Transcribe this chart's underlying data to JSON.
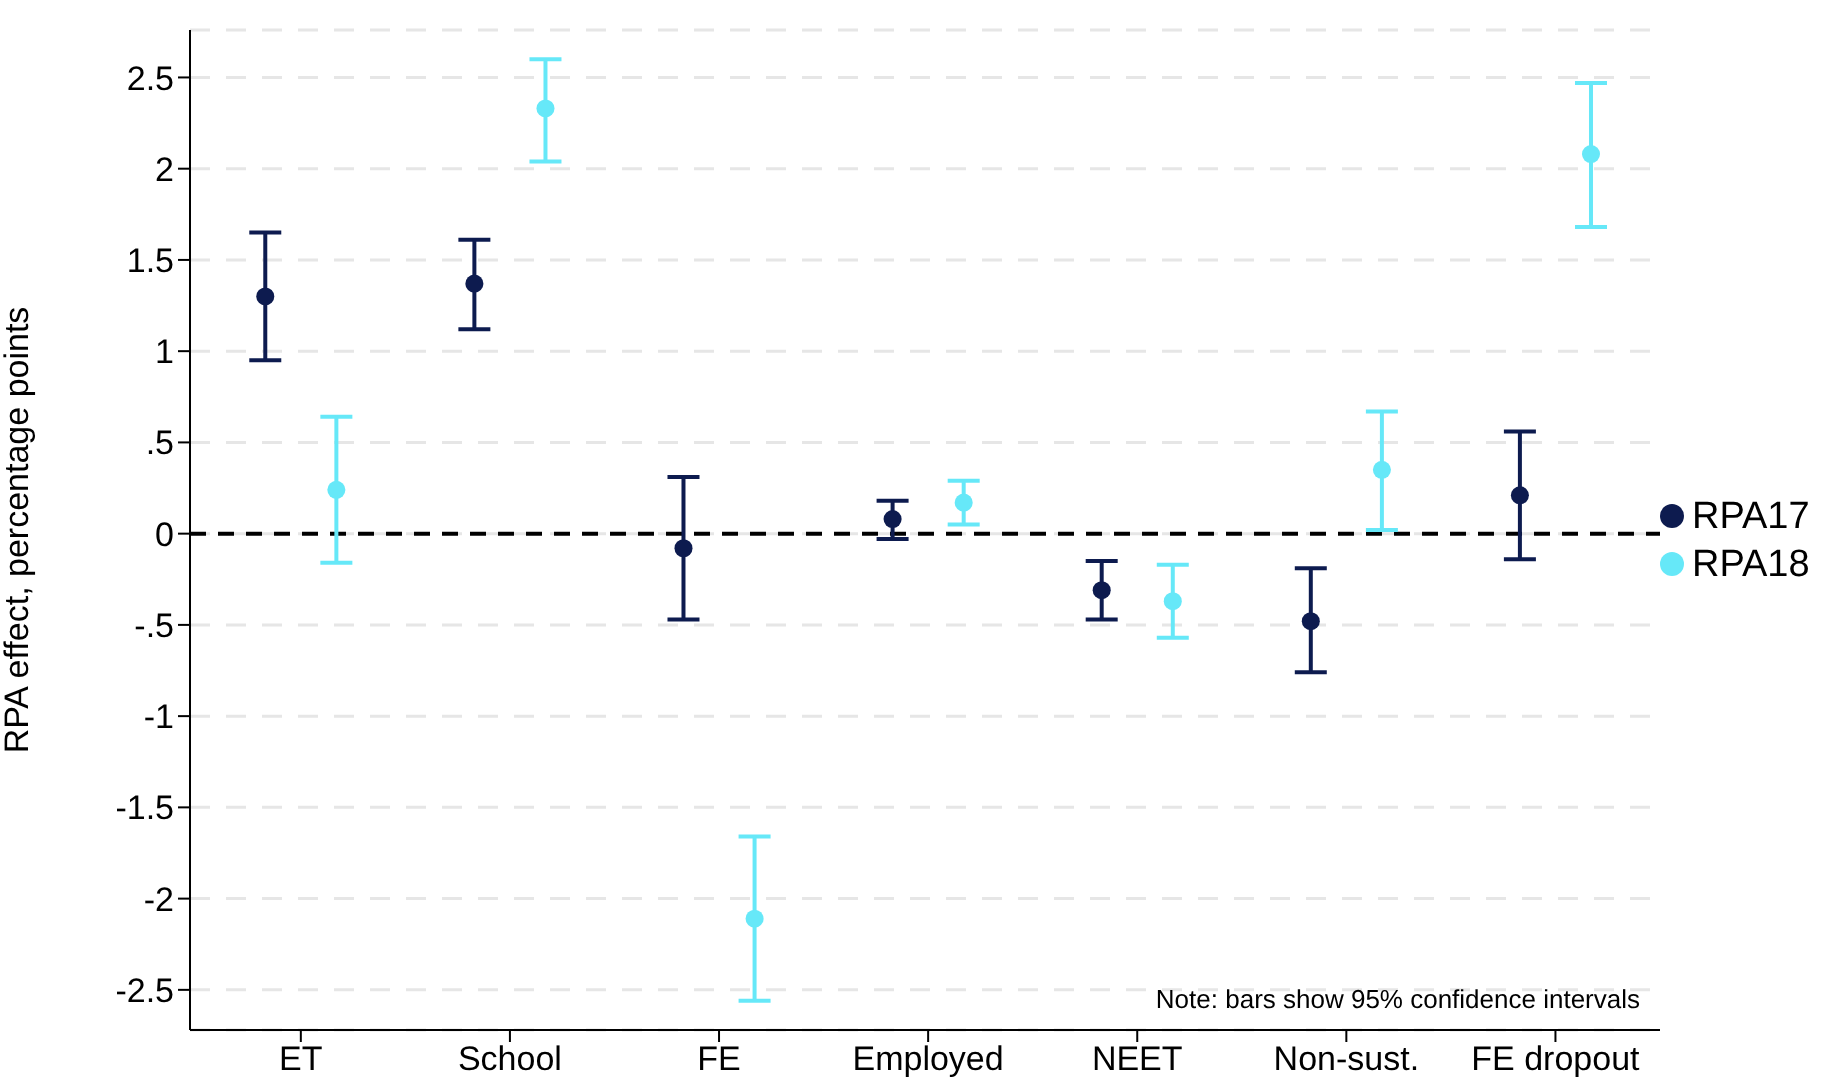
{
  "chart_data": {
    "type": "scatter",
    "ylabel": "RPA effect, percentage points",
    "categories": [
      "ET",
      "School",
      "FE",
      "Employed",
      "NEET",
      "Non-sust.",
      "FE dropout"
    ],
    "series": [
      {
        "name": "RPA17",
        "color": "#0d1b4f",
        "values": [
          1.3,
          1.37,
          -0.08,
          0.08,
          -0.31,
          -0.48,
          0.21
        ],
        "errors": [
          [
            0.95,
            1.65
          ],
          [
            1.12,
            1.61
          ],
          [
            -0.47,
            0.31
          ],
          [
            -0.03,
            0.18
          ],
          [
            -0.47,
            -0.15
          ],
          [
            -0.76,
            -0.19
          ],
          [
            -0.14,
            0.56
          ]
        ]
      },
      {
        "name": "RPA18",
        "color": "#66e8f8",
        "values": [
          0.24,
          2.33,
          -2.11,
          0.17,
          -0.37,
          0.35,
          2.08
        ],
        "errors": [
          [
            -0.16,
            0.64
          ],
          [
            2.04,
            2.6
          ],
          [
            -2.56,
            -1.66
          ],
          [
            0.05,
            0.29
          ],
          [
            -0.57,
            -0.17
          ],
          [
            0.02,
            0.67
          ],
          [
            1.68,
            2.47
          ]
        ]
      }
    ],
    "ylim": [
      -2.72,
      2.76
    ],
    "yticks": [
      {
        "value": -2.5,
        "label": "-2.5"
      },
      {
        "value": -2,
        "label": "-2"
      },
      {
        "value": -1.5,
        "label": "-1.5"
      },
      {
        "value": -1,
        "label": "-1"
      },
      {
        "value": -0.5,
        "label": "-.5"
      },
      0,
      {
        "value": 0.5,
        "label": ".5"
      },
      1,
      {
        "value": 1.5,
        "label": "1.5"
      },
      2,
      {
        "value": 2.5,
        "label": "2.5"
      }
    ],
    "grid": "y",
    "legend": "right",
    "marker": "circle",
    "ref_lines": [
      {
        "axis": "y",
        "value": 0,
        "color": "#000000",
        "line_style": "dashed"
      }
    ],
    "annotations": [
      "Note: bars show 95% confidence intervals"
    ]
  }
}
